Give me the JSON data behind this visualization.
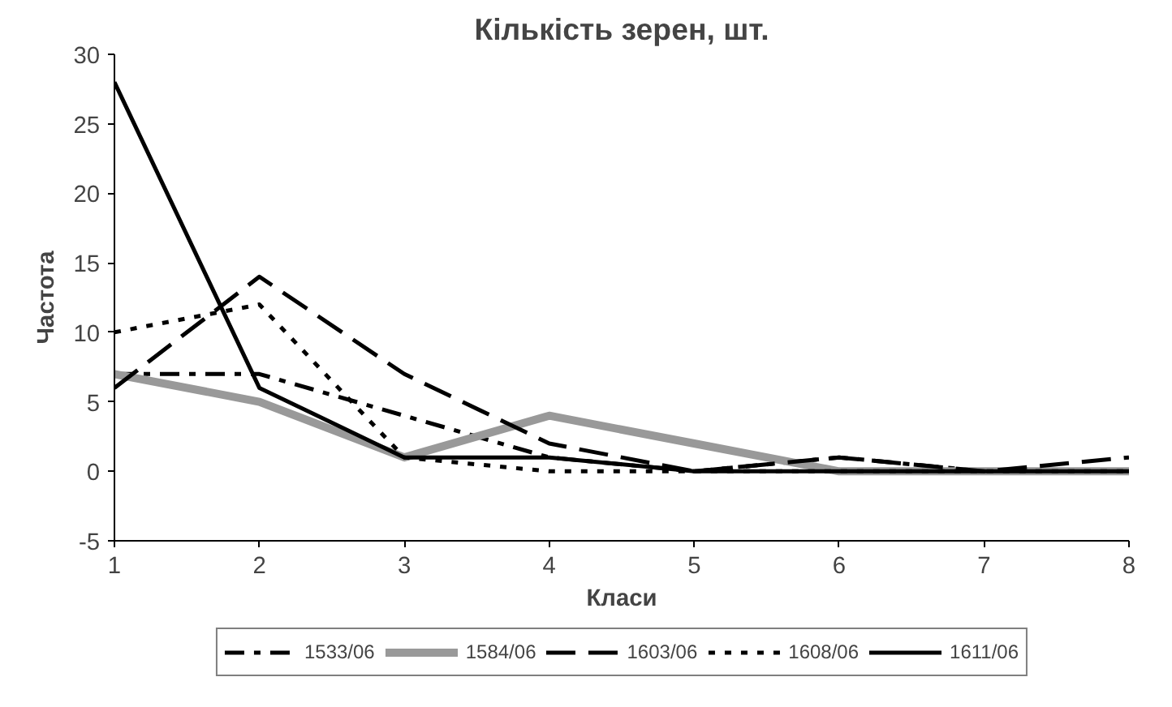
{
  "chart_data": {
    "type": "line",
    "title": "Кількість зерен, шт.",
    "xlabel": "Класи",
    "ylabel": "Частота",
    "x": [
      1,
      2,
      3,
      4,
      5,
      6,
      7,
      8
    ],
    "xlim": [
      1,
      8
    ],
    "xticks": [
      1,
      2,
      3,
      4,
      5,
      6,
      7,
      8
    ],
    "ylim": [
      -5,
      30
    ],
    "yticks": [
      -5,
      0,
      5,
      10,
      15,
      20,
      25,
      30
    ],
    "grid": false,
    "legend": "bottom",
    "marker": "none",
    "series": [
      {
        "name": "1533/06",
        "color": "#000000",
        "line_style": "dashdot",
        "values": [
          7,
          7,
          4,
          1,
          0,
          1,
          0,
          0
        ]
      },
      {
        "name": "1584/06",
        "color": "#999999",
        "line_style": "solid",
        "values": [
          7,
          5,
          1,
          4,
          2,
          0,
          0,
          0
        ]
      },
      {
        "name": "1603/06",
        "color": "#000000",
        "line_style": "dashed",
        "values": [
          6,
          14,
          7,
          2,
          0,
          1,
          0,
          1
        ]
      },
      {
        "name": "1608/06",
        "color": "#000000",
        "line_style": "dotted",
        "values": [
          10,
          12,
          1,
          0,
          0,
          0,
          0,
          0
        ]
      },
      {
        "name": "1611/06",
        "color": "#000000",
        "line_style": "solid",
        "values": [
          28,
          6,
          1,
          1,
          0,
          0,
          0,
          0
        ]
      }
    ]
  }
}
